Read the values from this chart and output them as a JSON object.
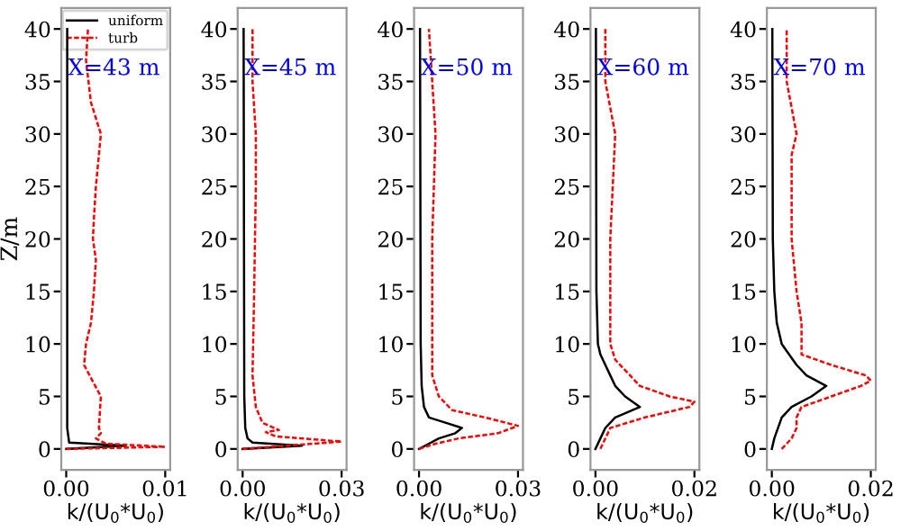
{
  "chart_data": [
    {
      "type": "line",
      "xlabel": "k/(U$_{0}$*U$_{0}$)",
      "ylabel": "Z/m",
      "annotations": [
        "X=43 m"
      ],
      "xlim": [
        -0.0005,
        0.0105
      ],
      "xticks": [
        {
          "value": 0,
          "label": "0.00"
        },
        {
          "value": 0.01,
          "label": "0.01"
        }
      ],
      "ylim": [
        -2,
        42
      ],
      "yticks": [
        0,
        5,
        10,
        15,
        20,
        25,
        30,
        35,
        40
      ],
      "legend": "top right",
      "grid": false,
      "series": [
        {
          "name": "uniform",
          "color": "#000000",
          "line_style": "solid",
          "x": [
            0,
            0.006,
            0.0003,
            0.0001,
            0.0001
          ],
          "values": [
            0,
            0.3,
            0.6,
            2,
            40
          ]
        },
        {
          "name": "turb",
          "color": "#ff0000",
          "line_style": "dashed",
          "x": [
            0,
            0.01,
            0.004,
            0.003,
            0.0035,
            0.0033,
            0.0035,
            0.0018,
            0.002,
            0.0025,
            0.0028,
            0.003,
            0.0027,
            0.0028,
            0.003,
            0.0035,
            0.0025,
            0.002,
            0.0022
          ],
          "values": [
            0,
            0.2,
            0.5,
            1,
            1.5,
            2,
            5,
            8,
            10,
            12,
            15,
            18,
            20,
            22,
            25,
            30,
            33,
            37,
            40
          ]
        }
      ]
    },
    {
      "type": "line",
      "xlabel": "k/(U$_{0}$*U$_{0}$)",
      "annotations": [
        "X=45 m"
      ],
      "xlim": [
        -0.0015,
        0.0315
      ],
      "xticks": [
        {
          "value": 0,
          "label": "0.00"
        },
        {
          "value": 0.03,
          "label": "0.03"
        }
      ],
      "ylim": [
        -2,
        42
      ],
      "yticks": [
        0,
        5,
        10,
        15,
        20,
        25,
        30,
        35,
        40
      ],
      "legend": false,
      "grid": false,
      "series": [
        {
          "color": "#000000",
          "line_style": "solid",
          "x": [
            0,
            0.018,
            0.003,
            0.0015,
            0.0008,
            0.0005,
            0.0003
          ],
          "values": [
            0,
            0.3,
            0.6,
            1,
            2,
            5,
            40
          ]
        },
        {
          "color": "#ff0000",
          "line_style": "dashed",
          "x": [
            0,
            0.03,
            0.01,
            0.007,
            0.011,
            0.006,
            0.004,
            0.003,
            0.0035,
            0.004,
            0.004,
            0.003,
            0.003
          ],
          "values": [
            0,
            0.7,
            1.2,
            1.6,
            1.8,
            2.5,
            4,
            7,
            15,
            25,
            30,
            35,
            40
          ]
        }
      ]
    },
    {
      "type": "line",
      "xlabel": "k/(U$_{0}$*U$_{0}$)",
      "annotations": [
        "X=50 m"
      ],
      "xlim": [
        -0.0015,
        0.0315
      ],
      "xticks": [
        {
          "value": 0,
          "label": "0.00"
        },
        {
          "value": 0.03,
          "label": "0.03"
        }
      ],
      "ylim": [
        -2,
        42
      ],
      "yticks": [
        0,
        5,
        10,
        15,
        20,
        25,
        30,
        35,
        40
      ],
      "legend": false,
      "grid": false,
      "series": [
        {
          "color": "#000000",
          "line_style": "solid",
          "x": [
            0,
            0.003,
            0.006,
            0.011,
            0.013,
            0.008,
            0.003,
            0.0015,
            0.0008,
            0.0005,
            0.0003
          ],
          "values": [
            0,
            0.5,
            1,
            1.5,
            2,
            2.5,
            3,
            4,
            6,
            10,
            40
          ]
        },
        {
          "color": "#ff0000",
          "line_style": "dashed",
          "x": [
            0,
            0.005,
            0.012,
            0.024,
            0.03,
            0.02,
            0.01,
            0.006,
            0.004,
            0.004,
            0.004,
            0.005,
            0.004,
            0.003
          ],
          "values": [
            0,
            0.5,
            1,
            1.5,
            2.2,
            3,
            3.7,
            5,
            7,
            10,
            20,
            30,
            35,
            40
          ]
        }
      ]
    },
    {
      "type": "line",
      "xlabel": "k/(U$_{0}$*U$_{0}$)",
      "annotations": [
        "X=60 m"
      ],
      "xlim": [
        -0.001,
        0.021
      ],
      "xticks": [
        {
          "value": 0,
          "label": "0.00"
        },
        {
          "value": 0.02,
          "label": "0.02"
        }
      ],
      "ylim": [
        -2,
        42
      ],
      "yticks": [
        0,
        5,
        10,
        15,
        20,
        25,
        30,
        35,
        40
      ],
      "legend": false,
      "grid": false,
      "series": [
        {
          "color": "#000000",
          "line_style": "solid",
          "x": [
            0,
            0.001,
            0.002,
            0.004,
            0.009,
            0.006,
            0.004,
            0.003,
            0.002,
            0.001,
            0.0005,
            0.0002,
            0.0001
          ],
          "values": [
            0,
            1,
            2,
            3,
            4,
            5,
            6,
            7,
            8,
            9,
            10,
            15,
            40
          ]
        },
        {
          "color": "#ff0000",
          "line_style": "dashed",
          "x": [
            0.001,
            0.002,
            0.003,
            0.01,
            0.019,
            0.02,
            0.015,
            0.009,
            0.007,
            0.004,
            0.003,
            0.003,
            0.004,
            0.002,
            0.002
          ],
          "values": [
            0,
            1,
            2,
            3,
            4,
            4.5,
            5,
            6,
            7,
            8.5,
            10,
            20,
            30,
            35,
            40
          ]
        }
      ]
    },
    {
      "type": "line",
      "xlabel": "k/(U$_{0}$*U$_{0}$)",
      "annotations": [
        "X=70 m"
      ],
      "xlim": [
        -0.001,
        0.021
      ],
      "xticks": [
        {
          "value": 0,
          "label": "0.00"
        },
        {
          "value": 0.02,
          "label": "0.02"
        }
      ],
      "ylim": [
        -2,
        42
      ],
      "yticks": [
        0,
        5,
        10,
        15,
        20,
        25,
        30,
        35,
        40
      ],
      "legend": false,
      "grid": false,
      "series": [
        {
          "color": "#000000",
          "line_style": "solid",
          "x": [
            0,
            0.0005,
            0.002,
            0.004,
            0.008,
            0.011,
            0.007,
            0.005,
            0.002,
            0.001,
            0.0005,
            0.0002,
            0.0001
          ],
          "values": [
            0,
            1,
            3,
            4,
            5,
            6,
            7,
            8,
            10,
            12,
            15,
            20,
            40
          ]
        },
        {
          "color": "#ff0000",
          "line_style": "dashed",
          "x": [
            0.002,
            0.004,
            0.005,
            0.005,
            0.006,
            0.012,
            0.018,
            0.02,
            0.019,
            0.012,
            0.006,
            0.006,
            0.005,
            0.004,
            0.004,
            0.005,
            0.003,
            0.003
          ],
          "values": [
            0,
            1,
            2,
            3,
            4,
            5,
            6,
            6.5,
            7,
            8,
            9,
            12,
            15,
            20,
            28,
            30,
            35,
            40
          ]
        }
      ]
    }
  ]
}
